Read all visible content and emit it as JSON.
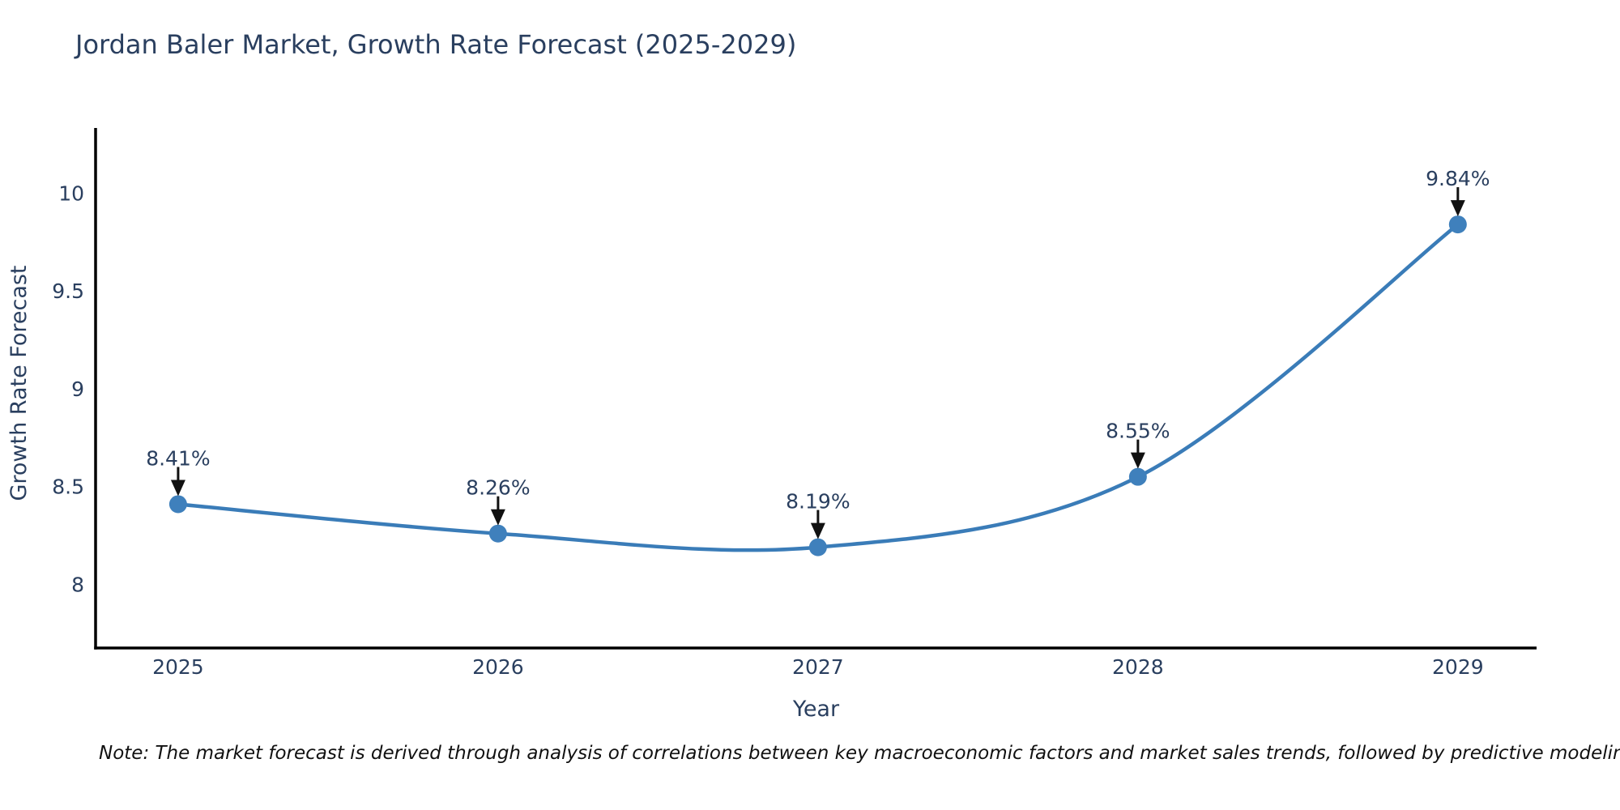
{
  "title": "Jordan Baler Market, Growth Rate Forecast (2025-2029)",
  "note": "Note: The market forecast is derived through analysis of correlations between key macroeconomic factors and market sales trends, followed by predictive modeling to project future sales",
  "chart_data": {
    "type": "line",
    "title": "Jordan Baler Market, Growth Rate Forecast (2025-2029)",
    "xlabel": "Year",
    "ylabel": "Growth Rate Forecast",
    "x": [
      2025,
      2026,
      2027,
      2028,
      2029
    ],
    "y": [
      8.41,
      8.26,
      8.19,
      8.55,
      9.84
    ],
    "point_labels": [
      "8.41%",
      "8.26%",
      "8.19%",
      "8.55%",
      "9.84%"
    ],
    "xticks": [
      "2025",
      "2026",
      "2027",
      "2028",
      "2029"
    ],
    "yticks": [
      "8",
      "8.5",
      "9",
      "9.5",
      "10"
    ],
    "ytick_values": [
      8,
      8.5,
      9,
      9.5,
      10
    ],
    "xlim": [
      2024.742,
      2029.246
    ],
    "ylim": [
      7.675,
      10.333
    ],
    "line_shape": "spline",
    "grid": false,
    "legend": false,
    "line_color": "#3a7cb8",
    "marker_color": "#3f80bc",
    "axis_color": "#000000",
    "text_color": "#2a3f5f",
    "arrow_color": "#111111"
  }
}
